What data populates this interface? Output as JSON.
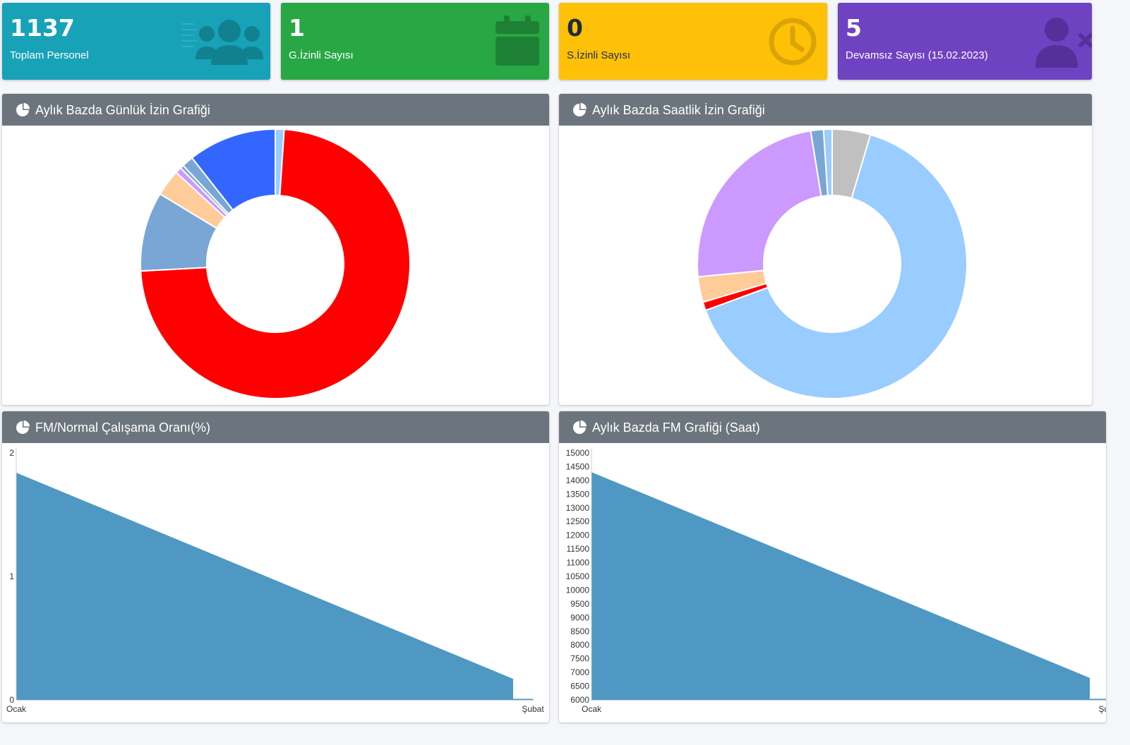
{
  "info_boxes": [
    {
      "number": "1137",
      "label": "Toplam Personel",
      "color": "#17a2b8",
      "icon": "users-icon"
    },
    {
      "number": "1",
      "label": "G.İzinli Sayısı",
      "color": "#28a745",
      "icon": "calendar-icon"
    },
    {
      "number": "0",
      "label": "S.İzinli Sayısı",
      "color": "#ffc107",
      "icon": "clock-icon"
    },
    {
      "number": "5",
      "label": "Devamsız Sayısı (15.02.2023)",
      "color": "#6f42c1",
      "icon": "user-times-icon"
    }
  ],
  "cards": [
    {
      "title": "Aylık Bazda Günlük İzin Grafiği",
      "icon": "chart-pie-icon"
    },
    {
      "title": "Aylık Bazda Saatlik İzin Grafiği",
      "icon": "chart-pie-icon"
    },
    {
      "title": "FM/Normal Çalışama Oranı(%)",
      "icon": "chart-pie-icon"
    },
    {
      "title": "Aylık Bazda FM Grafiği (Saat)",
      "icon": "chart-pie-icon"
    }
  ],
  "chart_data": [
    {
      "type": "pie",
      "donut": true,
      "values": [
        1,
        69,
        9,
        3,
        0.7,
        0.4,
        1.3,
        10
      ],
      "colors": [
        "#99ccff",
        "#ff0000",
        "#7aa6d6",
        "#ffcc99",
        "#cc99ff",
        "#7aa6d6",
        "#7aa6d6",
        "#3366ff"
      ]
    },
    {
      "type": "pie",
      "donut": true,
      "values": [
        4.5,
        63.5,
        1,
        3,
        23.5,
        1.5,
        1
      ],
      "colors": [
        "#c0c0c0",
        "#99ccff",
        "#ff0000",
        "#ffcc99",
        "#cc99ff",
        "#7aa6d6",
        "#99ccff"
      ]
    },
    {
      "type": "area",
      "categories": [
        "Ocak",
        "Şubat"
      ],
      "values": [
        1.84,
        0.17
      ],
      "ylim": [
        0,
        2
      ],
      "yticks": [
        "0",
        "1",
        "2"
      ],
      "color": "#4f98c3"
    },
    {
      "type": "area",
      "categories": [
        "Ocak",
        "Şubat"
      ],
      "values": [
        14300,
        6800
      ],
      "ylim": [
        6000,
        15000
      ],
      "yticks": [
        "6000",
        "6500",
        "7000",
        "7500",
        "8000",
        "8500",
        "9000",
        "9500",
        "10000",
        "10500",
        "11000",
        "11500",
        "12000",
        "12500",
        "13000",
        "13500",
        "14000",
        "14500",
        "15000"
      ],
      "color": "#4f98c3"
    }
  ]
}
